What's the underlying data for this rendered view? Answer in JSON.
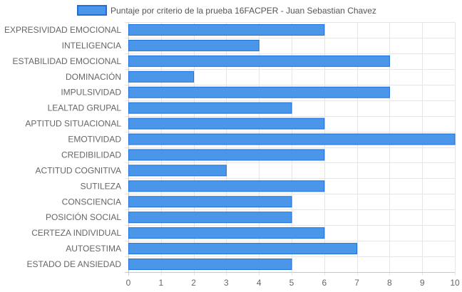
{
  "chart_data": {
    "type": "bar",
    "orientation": "horizontal",
    "legend_position": "top",
    "grid": true,
    "xlim": [
      0,
      10
    ],
    "x_ticks": [
      0,
      1,
      2,
      3,
      4,
      5,
      6,
      7,
      8,
      9,
      10
    ],
    "categories": [
      "EXPRESIVIDAD EMOCIONAL",
      "INTELIGENCIA",
      "ESTABILIDAD EMOCIONAL",
      "DOMINACIÓN",
      "IMPULSIVIDAD",
      "LEALTAD GRUPAL",
      "APTITUD SITUACIONAL",
      "EMOTIVIDAD",
      "CREDIBILIDAD",
      "ACTITUD COGNITIVA",
      "SUTILEZA",
      "CONSCIENCIA",
      "POSICIÓN SOCIAL",
      "CERTEZA INDIVIDUAL",
      "AUTOESTIMA",
      "ESTADO DE ANSIEDAD"
    ],
    "series": [
      {
        "name": "Puntaje por criterio de la prueba 16FACPER - Juan Sebastian Chavez",
        "color": "#4a97ea",
        "border_color": "#1e6fd9",
        "values": [
          6,
          4,
          8,
          2,
          8,
          5,
          6,
          10,
          6,
          3,
          6,
          5,
          5,
          6,
          7,
          5
        ]
      }
    ],
    "colors": {
      "grid": "#e6e6e6",
      "axis": "#c8c8c8",
      "tick_text": "#666666"
    }
  }
}
